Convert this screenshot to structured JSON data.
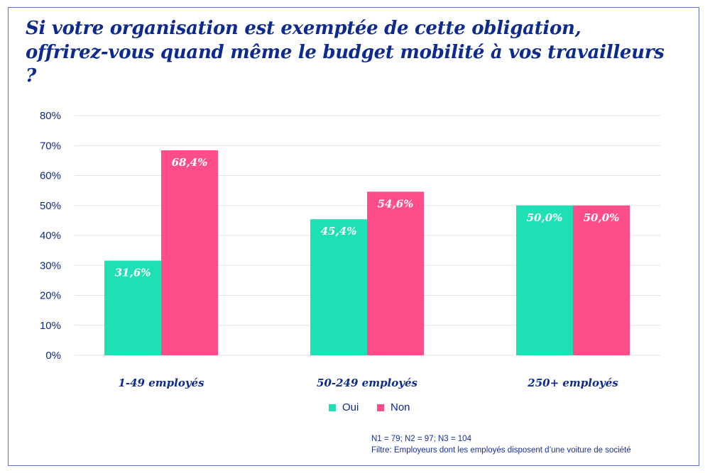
{
  "chart_data": {
    "type": "bar",
    "title": "Si votre organisation est exemptée de cette obligation, offrirez-vous quand même le budget mobilité à vos travailleurs ?",
    "categories": [
      "1-49 employés",
      "50-249 employés",
      "250+ employés"
    ],
    "series": [
      {
        "name": "Oui",
        "color": "#1fe0b5",
        "values": [
          31.6,
          45.4,
          50.0
        ],
        "labels": [
          "31,6%",
          "45,4%",
          "50,0%"
        ]
      },
      {
        "name": "Non",
        "color": "#ff4d89",
        "values": [
          68.4,
          54.6,
          50.0
        ],
        "labels": [
          "68,4%",
          "54,6%",
          "50,0%"
        ]
      }
    ],
    "ylim": [
      0,
      80
    ],
    "yticks": [
      "0%",
      "10%",
      "20%",
      "30%",
      "40%",
      "50%",
      "60%",
      "70%",
      "80%"
    ],
    "grid": true,
    "legend": "bottom",
    "xlabel": "",
    "ylabel": ""
  },
  "notes": {
    "sample": "N1 = 79; N2 = 97; N3 = 104",
    "filter": "Filtre: Employeurs dont les employés disposent d’une voiture de société"
  }
}
